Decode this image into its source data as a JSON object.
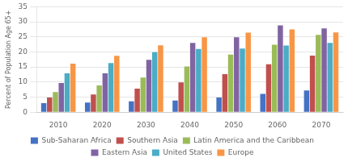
{
  "chart_data": {
    "type": "bar",
    "categories": [
      "2010",
      "2020",
      "2030",
      "2040",
      "2050",
      "2060",
      "2070"
    ],
    "series": [
      {
        "name": "Sub-Saharan Africa",
        "color": "#4472C4",
        "values": [
          3.0,
          3.2,
          3.6,
          3.9,
          4.9,
          6.1,
          7.2
        ]
      },
      {
        "name": "Southern Asia",
        "color": "#C0504D",
        "values": [
          4.9,
          5.9,
          7.8,
          9.9,
          12.6,
          15.9,
          18.8
        ]
      },
      {
        "name": "Latin America and the Caribbean",
        "color": "#9BBB59",
        "values": [
          6.7,
          8.9,
          11.5,
          15.2,
          19.1,
          22.4,
          25.7
        ]
      },
      {
        "name": "Eastern Asia",
        "color": "#8064A2",
        "values": [
          9.7,
          12.9,
          17.4,
          23.0,
          24.9,
          28.8,
          27.8
        ]
      },
      {
        "name": "United States",
        "color": "#4BACC6",
        "values": [
          12.9,
          16.3,
          19.9,
          21.0,
          21.1,
          22.1,
          23.0
        ]
      },
      {
        "name": "Europe",
        "color": "#F79646",
        "values": [
          16.1,
          18.7,
          22.2,
          24.9,
          26.4,
          27.5,
          26.5
        ]
      }
    ],
    "y_label": "Percent of Population Age 65+",
    "ylim": [
      0,
      35
    ],
    "yticks": [
      0,
      5,
      10,
      15,
      20,
      25,
      30,
      35
    ],
    "grid": true,
    "legend": "bottom"
  }
}
